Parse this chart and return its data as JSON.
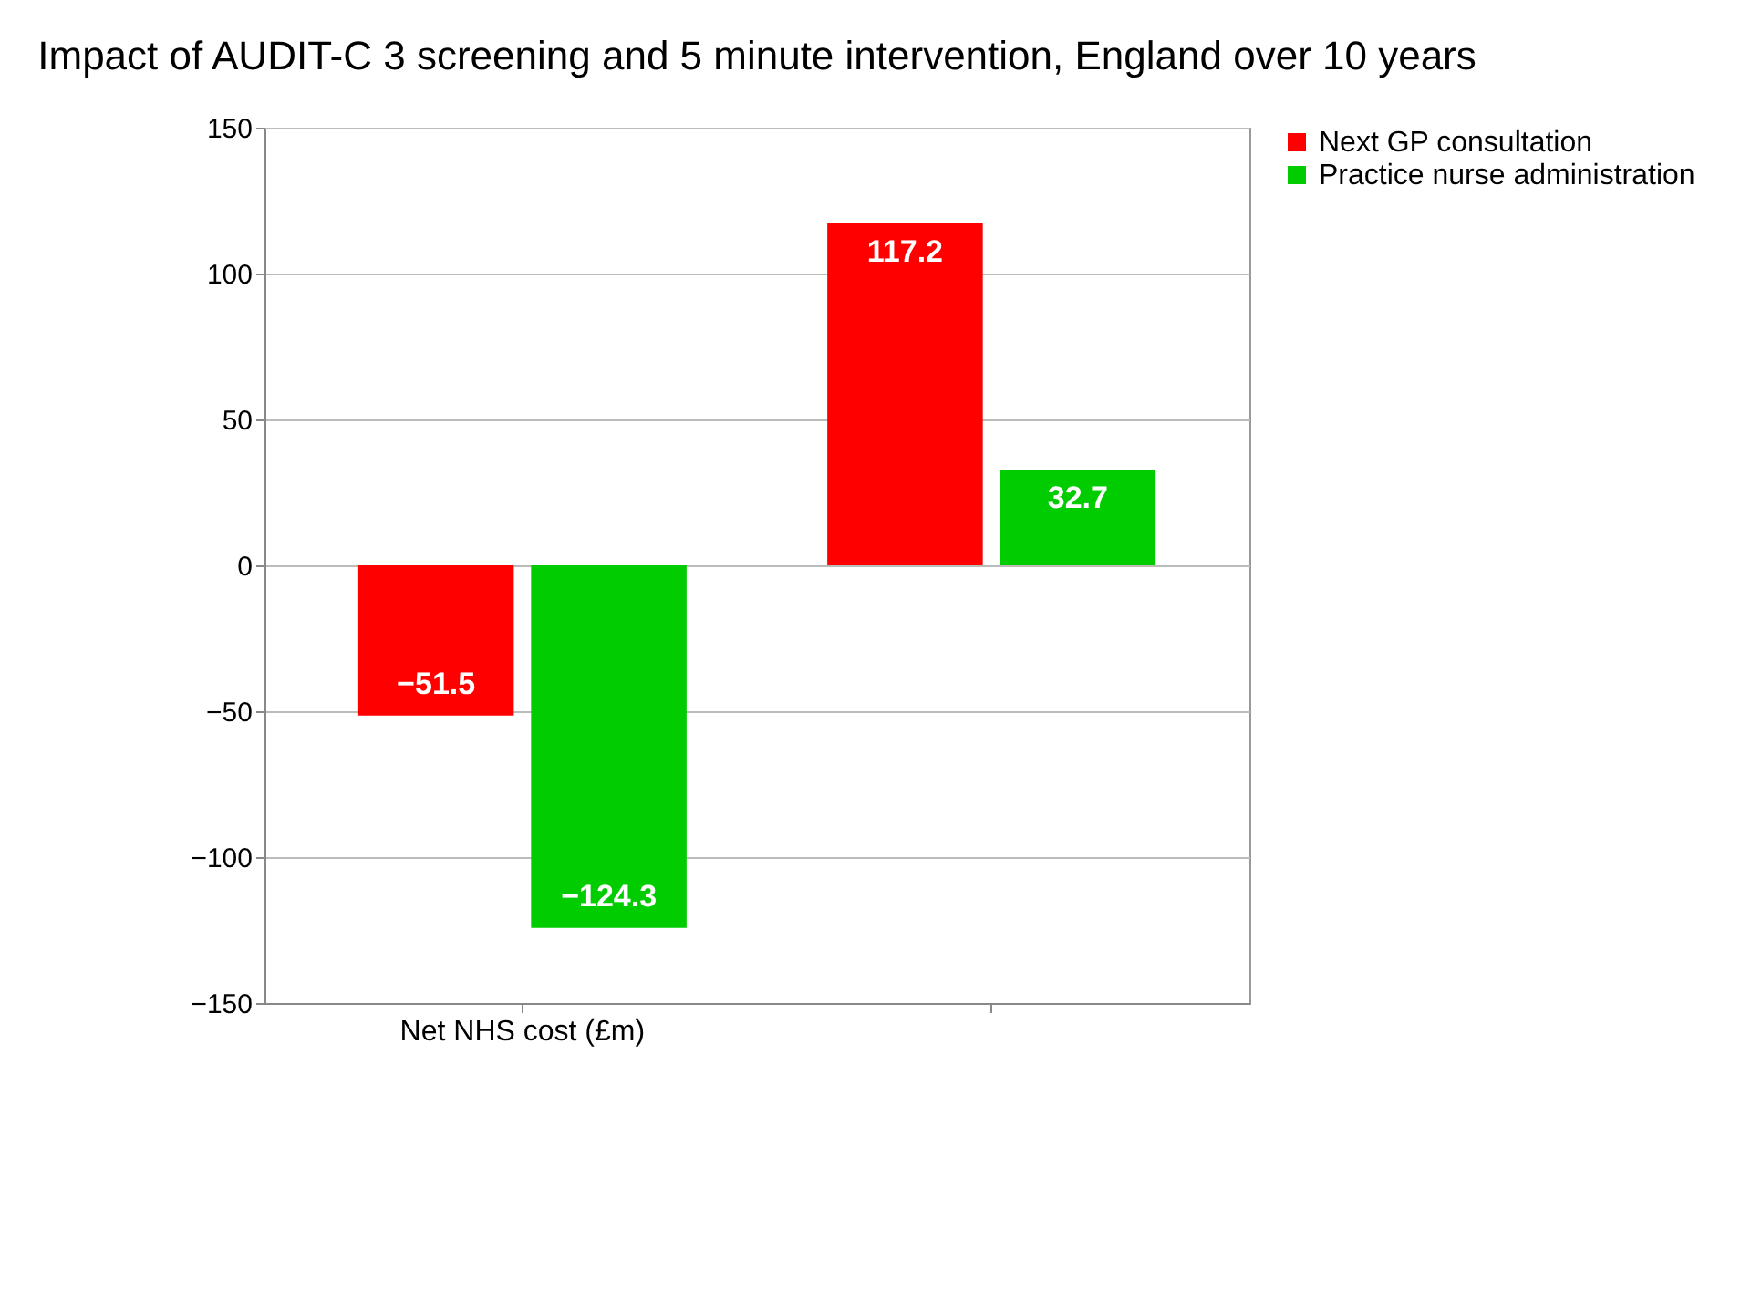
{
  "chart_data": {
    "type": "bar",
    "title": "Impact of AUDIT-C 3 screening and 5 minute intervention, England over 10 years",
    "categories": [
      "Net NHS cost (£m)",
      null
    ],
    "series": [
      {
        "name": "Next GP consultation",
        "color": "#ff0000",
        "values": [
          -51.5,
          117.2
        ]
      },
      {
        "name": "Practice nurse administration",
        "color": "#00cc00",
        "values": [
          -124.3,
          32.7
        ]
      }
    ],
    "ylim": [
      -150,
      150
    ],
    "yticks": [
      -150,
      -100,
      -50,
      0,
      50,
      100,
      150
    ],
    "grid": "y",
    "legend": "right",
    "data_labels": true
  }
}
